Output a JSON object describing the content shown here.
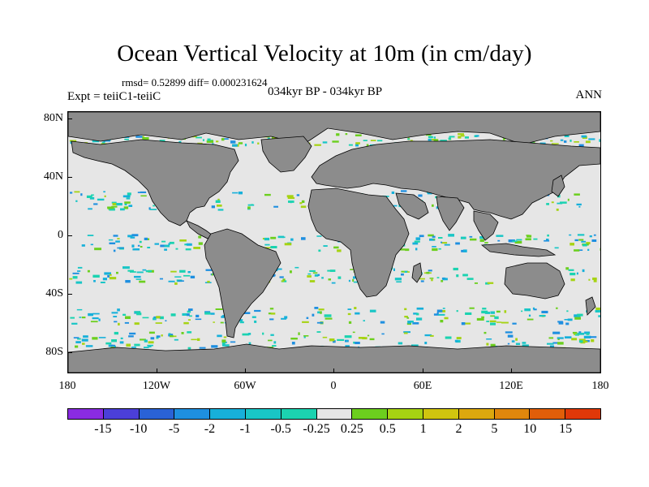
{
  "title": "Ocean Vertical Velocity at 10m (in cm/day)",
  "stats": "rmsd= 0.52899 diff= 0.000231624",
  "expt": "Expt = teiiC1-teiiC",
  "period": "034kyr BP - 034kyr BP",
  "season": "ANN",
  "lat_labels": [
    "80N",
    "40N",
    "0",
    "40S",
    "80S"
  ],
  "lon_labels": [
    "180",
    "120W",
    "60W",
    "0",
    "60E",
    "120E",
    "180"
  ],
  "colorbar": {
    "colors": [
      "#8a2be2",
      "#4b3fd9",
      "#2a62d6",
      "#1e8fe0",
      "#17b0da",
      "#19c6c6",
      "#1bd3b0",
      "#e6e6e6",
      "#6ccf1e",
      "#a6d313",
      "#d0c50f",
      "#dca80e",
      "#e0870c",
      "#e15e09",
      "#e03808"
    ],
    "labels": [
      "-15",
      "-10",
      "-5",
      "-2",
      "-1",
      "-0.5",
      "-0.25",
      "0.25",
      "0.5",
      "1",
      "2",
      "5",
      "10",
      "15"
    ]
  },
  "map": {
    "land_color": "#8c8c8c",
    "ocean_color": "#e6e6e6"
  }
}
